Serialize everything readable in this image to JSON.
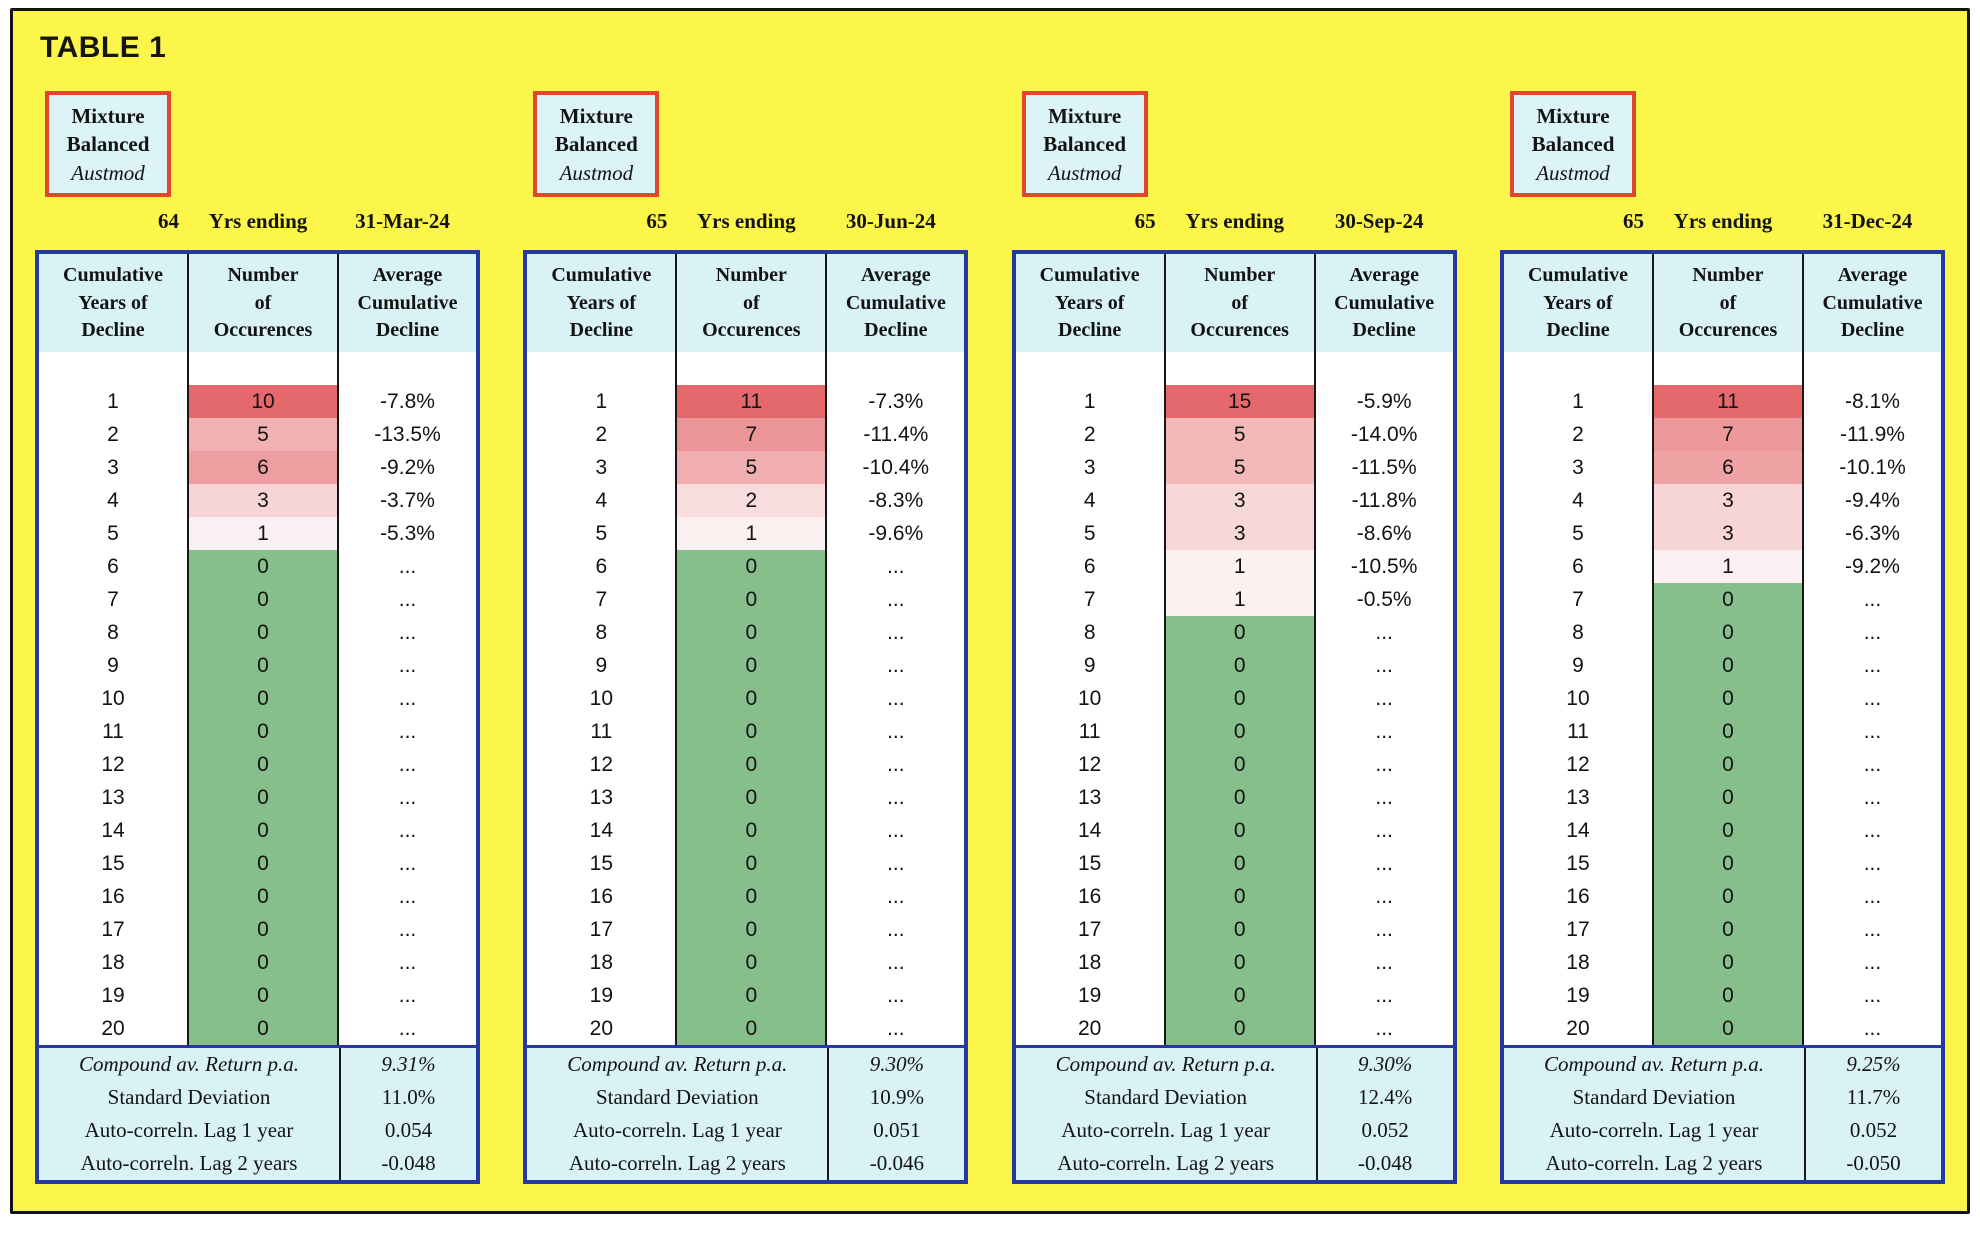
{
  "title": "TABLE 1",
  "colors": {
    "page_background": "#FCF64B",
    "board_border": "#131313",
    "strategy_box_bg": "#DCF3F7",
    "strategy_box_border": "#E2462C",
    "table_border_blue": "#2438A6",
    "header_bg": "#D9F2F6",
    "zero_cell_green": "#86BF8C",
    "max_cell_red": "#E4696C"
  },
  "table": {
    "columns": [
      {
        "lines": [
          "Cumulative",
          "Years of",
          "Decline"
        ]
      },
      {
        "lines": [
          "Number",
          "of",
          "Occurences"
        ]
      },
      {
        "lines": [
          "Average",
          "Cumulative",
          "Decline"
        ]
      }
    ]
  },
  "panels": [
    {
      "box_lines": [
        "Mixture",
        "Balanced"
      ],
      "box_italic": "Austmod",
      "years": "64",
      "yrs_label": "Yrs ending",
      "end_date": "31-Mar-24",
      "rows": [
        {
          "year": "1",
          "occ": "10",
          "decline": "-7.8%",
          "occ_bg": "#E4696C"
        },
        {
          "year": "2",
          "occ": "5",
          "decline": "-13.5%",
          "occ_bg": "#F1B1B3"
        },
        {
          "year": "3",
          "occ": "6",
          "decline": "-9.2%",
          "occ_bg": "#EC9EA1"
        },
        {
          "year": "4",
          "occ": "3",
          "decline": "-3.7%",
          "occ_bg": "#F7D4D6"
        },
        {
          "year": "5",
          "occ": "1",
          "decline": "-5.3%",
          "occ_bg": "#FBEFF1"
        },
        {
          "year": "6",
          "occ": "0",
          "decline": "...",
          "occ_bg": "#86BF8C"
        },
        {
          "year": "7",
          "occ": "0",
          "decline": "...",
          "occ_bg": "#86BF8C"
        },
        {
          "year": "8",
          "occ": "0",
          "decline": "...",
          "occ_bg": "#86BF8C"
        },
        {
          "year": "9",
          "occ": "0",
          "decline": "...",
          "occ_bg": "#86BF8C"
        },
        {
          "year": "10",
          "occ": "0",
          "decline": "...",
          "occ_bg": "#86BF8C"
        },
        {
          "year": "11",
          "occ": "0",
          "decline": "...",
          "occ_bg": "#86BF8C"
        },
        {
          "year": "12",
          "occ": "0",
          "decline": "...",
          "occ_bg": "#86BF8C"
        },
        {
          "year": "13",
          "occ": "0",
          "decline": "...",
          "occ_bg": "#86BF8C"
        },
        {
          "year": "14",
          "occ": "0",
          "decline": "...",
          "occ_bg": "#86BF8C"
        },
        {
          "year": "15",
          "occ": "0",
          "decline": "...",
          "occ_bg": "#86BF8C"
        },
        {
          "year": "16",
          "occ": "0",
          "decline": "...",
          "occ_bg": "#86BF8C"
        },
        {
          "year": "17",
          "occ": "0",
          "decline": "...",
          "occ_bg": "#86BF8C"
        },
        {
          "year": "18",
          "occ": "0",
          "decline": "...",
          "occ_bg": "#86BF8C"
        },
        {
          "year": "19",
          "occ": "0",
          "decline": "...",
          "occ_bg": "#86BF8C"
        },
        {
          "year": "20",
          "occ": "0",
          "decline": "...",
          "occ_bg": "#86BF8C"
        }
      ],
      "stats": [
        {
          "label": "Compound av. Return p.a.",
          "value": "9.31%",
          "italic": true
        },
        {
          "label": "Standard Deviation",
          "value": "11.0%"
        },
        {
          "label": "Auto-correln. Lag 1 year",
          "value": "0.054"
        },
        {
          "label": "Auto-correln. Lag 2 years",
          "value": "-0.048"
        }
      ]
    },
    {
      "box_lines": [
        "Mixture",
        "Balanced"
      ],
      "box_italic": "Austmod",
      "years": "65",
      "yrs_label": "Yrs ending",
      "end_date": "30-Jun-24",
      "rows": [
        {
          "year": "1",
          "occ": "11",
          "decline": "-7.3%",
          "occ_bg": "#E4696C"
        },
        {
          "year": "2",
          "occ": "7",
          "decline": "-11.4%",
          "occ_bg": "#EC9598"
        },
        {
          "year": "3",
          "occ": "5",
          "decline": "-10.4%",
          "occ_bg": "#F1AEB1"
        },
        {
          "year": "4",
          "occ": "2",
          "decline": "-8.3%",
          "occ_bg": "#F8DCDE"
        },
        {
          "year": "5",
          "occ": "1",
          "decline": "-9.6%",
          "occ_bg": "#FBEFF0"
        },
        {
          "year": "6",
          "occ": "0",
          "decline": "...",
          "occ_bg": "#86BF8C"
        },
        {
          "year": "7",
          "occ": "0",
          "decline": "...",
          "occ_bg": "#86BF8C"
        },
        {
          "year": "8",
          "occ": "0",
          "decline": "...",
          "occ_bg": "#86BF8C"
        },
        {
          "year": "9",
          "occ": "0",
          "decline": "...",
          "occ_bg": "#86BF8C"
        },
        {
          "year": "10",
          "occ": "0",
          "decline": "...",
          "occ_bg": "#86BF8C"
        },
        {
          "year": "11",
          "occ": "0",
          "decline": "...",
          "occ_bg": "#86BF8C"
        },
        {
          "year": "12",
          "occ": "0",
          "decline": "...",
          "occ_bg": "#86BF8C"
        },
        {
          "year": "13",
          "occ": "0",
          "decline": "...",
          "occ_bg": "#86BF8C"
        },
        {
          "year": "14",
          "occ": "0",
          "decline": "...",
          "occ_bg": "#86BF8C"
        },
        {
          "year": "15",
          "occ": "0",
          "decline": "...",
          "occ_bg": "#86BF8C"
        },
        {
          "year": "16",
          "occ": "0",
          "decline": "...",
          "occ_bg": "#86BF8C"
        },
        {
          "year": "17",
          "occ": "0",
          "decline": "...",
          "occ_bg": "#86BF8C"
        },
        {
          "year": "18",
          "occ": "0",
          "decline": "...",
          "occ_bg": "#86BF8C"
        },
        {
          "year": "19",
          "occ": "0",
          "decline": "...",
          "occ_bg": "#86BF8C"
        },
        {
          "year": "20",
          "occ": "0",
          "decline": "...",
          "occ_bg": "#86BF8C"
        }
      ],
      "stats": [
        {
          "label": "Compound av. Return p.a.",
          "value": "9.30%",
          "italic": true
        },
        {
          "label": "Standard Deviation",
          "value": "10.9%"
        },
        {
          "label": "Auto-correln. Lag 1 year",
          "value": "0.051"
        },
        {
          "label": "Auto-correln. Lag 2 years",
          "value": "-0.046"
        }
      ]
    },
    {
      "box_lines": [
        "Mixture",
        "Balanced"
      ],
      "box_italic": "Austmod",
      "years": "65",
      "yrs_label": "Yrs ending",
      "end_date": "30-Sep-24",
      "rows": [
        {
          "year": "1",
          "occ": "15",
          "decline": "-5.9%",
          "occ_bg": "#E4696C"
        },
        {
          "year": "2",
          "occ": "5",
          "decline": "-14.0%",
          "occ_bg": "#F3B9B9"
        },
        {
          "year": "3",
          "occ": "5",
          "decline": "-11.5%",
          "occ_bg": "#F3B9B9"
        },
        {
          "year": "4",
          "occ": "3",
          "decline": "-11.8%",
          "occ_bg": "#F8D7D8"
        },
        {
          "year": "5",
          "occ": "3",
          "decline": "-8.6%",
          "occ_bg": "#F8D7D8"
        },
        {
          "year": "6",
          "occ": "1",
          "decline": "-10.5%",
          "occ_bg": "#FCF0F0"
        },
        {
          "year": "7",
          "occ": "1",
          "decline": "-0.5%",
          "occ_bg": "#FCF0F0"
        },
        {
          "year": "8",
          "occ": "0",
          "decline": "...",
          "occ_bg": "#86BF8C"
        },
        {
          "year": "9",
          "occ": "0",
          "decline": "...",
          "occ_bg": "#86BF8C"
        },
        {
          "year": "10",
          "occ": "0",
          "decline": "...",
          "occ_bg": "#86BF8C"
        },
        {
          "year": "11",
          "occ": "0",
          "decline": "...",
          "occ_bg": "#86BF8C"
        },
        {
          "year": "12",
          "occ": "0",
          "decline": "...",
          "occ_bg": "#86BF8C"
        },
        {
          "year": "13",
          "occ": "0",
          "decline": "...",
          "occ_bg": "#86BF8C"
        },
        {
          "year": "14",
          "occ": "0",
          "decline": "...",
          "occ_bg": "#86BF8C"
        },
        {
          "year": "15",
          "occ": "0",
          "decline": "...",
          "occ_bg": "#86BF8C"
        },
        {
          "year": "16",
          "occ": "0",
          "decline": "...",
          "occ_bg": "#86BF8C"
        },
        {
          "year": "17",
          "occ": "0",
          "decline": "...",
          "occ_bg": "#86BF8C"
        },
        {
          "year": "18",
          "occ": "0",
          "decline": "...",
          "occ_bg": "#86BF8C"
        },
        {
          "year": "19",
          "occ": "0",
          "decline": "...",
          "occ_bg": "#86BF8C"
        },
        {
          "year": "20",
          "occ": "0",
          "decline": "...",
          "occ_bg": "#86BF8C"
        }
      ],
      "stats": [
        {
          "label": "Compound av. Return p.a.",
          "value": "9.30%",
          "italic": true
        },
        {
          "label": "Standard Deviation",
          "value": "12.4%"
        },
        {
          "label": "Auto-correln. Lag 1 year",
          "value": "0.052"
        },
        {
          "label": "Auto-correln. Lag 2 years",
          "value": "-0.048"
        }
      ]
    },
    {
      "box_lines": [
        "Mixture",
        "Balanced"
      ],
      "box_italic": "Austmod",
      "years": "65",
      "yrs_label": "Yrs ending",
      "end_date": "31-Dec-24",
      "rows": [
        {
          "year": "1",
          "occ": "11",
          "decline": "-8.1%",
          "occ_bg": "#E4696C"
        },
        {
          "year": "2",
          "occ": "7",
          "decline": "-11.9%",
          "occ_bg": "#EC979A"
        },
        {
          "year": "3",
          "occ": "6",
          "decline": "-10.1%",
          "occ_bg": "#EFA3A5"
        },
        {
          "year": "4",
          "occ": "3",
          "decline": "-9.4%",
          "occ_bg": "#F7D5D7"
        },
        {
          "year": "5",
          "occ": "3",
          "decline": "-6.3%",
          "occ_bg": "#F7D5D7"
        },
        {
          "year": "6",
          "occ": "1",
          "decline": "-9.2%",
          "occ_bg": "#FBEFF1"
        },
        {
          "year": "7",
          "occ": "0",
          "decline": "...",
          "occ_bg": "#86BF8C"
        },
        {
          "year": "8",
          "occ": "0",
          "decline": "...",
          "occ_bg": "#86BF8C"
        },
        {
          "year": "9",
          "occ": "0",
          "decline": "...",
          "occ_bg": "#86BF8C"
        },
        {
          "year": "10",
          "occ": "0",
          "decline": "...",
          "occ_bg": "#86BF8C"
        },
        {
          "year": "11",
          "occ": "0",
          "decline": "...",
          "occ_bg": "#86BF8C"
        },
        {
          "year": "12",
          "occ": "0",
          "decline": "...",
          "occ_bg": "#86BF8C"
        },
        {
          "year": "13",
          "occ": "0",
          "decline": "...",
          "occ_bg": "#86BF8C"
        },
        {
          "year": "14",
          "occ": "0",
          "decline": "...",
          "occ_bg": "#86BF8C"
        },
        {
          "year": "15",
          "occ": "0",
          "decline": "...",
          "occ_bg": "#86BF8C"
        },
        {
          "year": "16",
          "occ": "0",
          "decline": "...",
          "occ_bg": "#86BF8C"
        },
        {
          "year": "17",
          "occ": "0",
          "decline": "...",
          "occ_bg": "#86BF8C"
        },
        {
          "year": "18",
          "occ": "0",
          "decline": "...",
          "occ_bg": "#86BF8C"
        },
        {
          "year": "19",
          "occ": "0",
          "decline": "...",
          "occ_bg": "#86BF8C"
        },
        {
          "year": "20",
          "occ": "0",
          "decline": "...",
          "occ_bg": "#86BF8C"
        }
      ],
      "stats": [
        {
          "label": "Compound av. Return p.a.",
          "value": "9.25%",
          "italic": true
        },
        {
          "label": "Standard Deviation",
          "value": "11.7%"
        },
        {
          "label": "Auto-correln. Lag 1 year",
          "value": "0.052"
        },
        {
          "label": "Auto-correln. Lag 2 years",
          "value": "-0.050"
        }
      ]
    }
  ]
}
